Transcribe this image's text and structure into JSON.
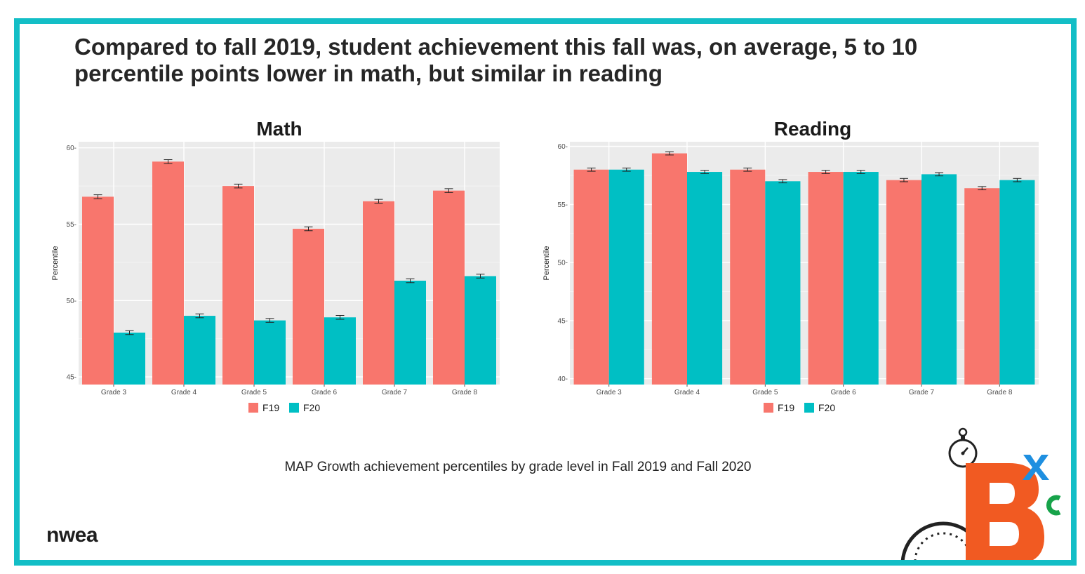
{
  "headline": {
    "line1": "Compared to fall 2019, student achievement this fall was, on average, 5 to 10",
    "line2": "percentile points lower in math, but similar in reading"
  },
  "caption": "MAP Growth achievement percentiles by grade level in Fall 2019 and Fall 2020",
  "logo_text": "nwea",
  "colors": {
    "frame": "#13bec6",
    "f19": "#f8766d",
    "f20": "#00bfc4",
    "panel_bg": "#ebebeb",
    "badge_orange": "#f15a22",
    "badge_blue": "#1e8fe0",
    "badge_green": "#17a34a"
  },
  "icons": [
    "stopwatch-icon",
    "gauge-icon",
    "bxc-badge-icon"
  ],
  "chart_data": [
    {
      "type": "bar",
      "title": "Math",
      "xlabel": "",
      "ylabel": "Percentile",
      "categories": [
        "Grade 3",
        "Grade 4",
        "Grade 5",
        "Grade 6",
        "Grade 7",
        "Grade 8"
      ],
      "series": [
        {
          "name": "F19",
          "values": [
            56.8,
            59.1,
            57.5,
            54.7,
            56.5,
            57.2
          ]
        },
        {
          "name": "F20",
          "values": [
            47.9,
            49.0,
            48.7,
            48.9,
            51.3,
            51.6
          ]
        }
      ],
      "error_bar": 0.08,
      "ylim": [
        44.5,
        60.4
      ],
      "yticks": [
        45,
        50,
        55,
        60
      ],
      "ytick_labels": [
        "45-",
        "50-",
        "55-",
        "60-"
      ],
      "grid": true,
      "legend": "bottom"
    },
    {
      "type": "bar",
      "title": "Reading",
      "xlabel": "",
      "ylabel": "Percentile",
      "categories": [
        "Grade 3",
        "Grade 4",
        "Grade 5",
        "Grade 6",
        "Grade 7",
        "Grade 8"
      ],
      "series": [
        {
          "name": "F19",
          "values": [
            58.0,
            59.4,
            58.0,
            57.8,
            57.1,
            56.4
          ]
        },
        {
          "name": "F20",
          "values": [
            58.0,
            57.8,
            57.0,
            57.8,
            57.6,
            57.1
          ]
        }
      ],
      "error_bar": 0.08,
      "ylim": [
        39.5,
        60.4
      ],
      "yticks": [
        40,
        45,
        50,
        55,
        60
      ],
      "ytick_labels": [
        "40-",
        "45-",
        "50-",
        "55-",
        "60-"
      ],
      "grid": true,
      "legend": "bottom"
    }
  ]
}
